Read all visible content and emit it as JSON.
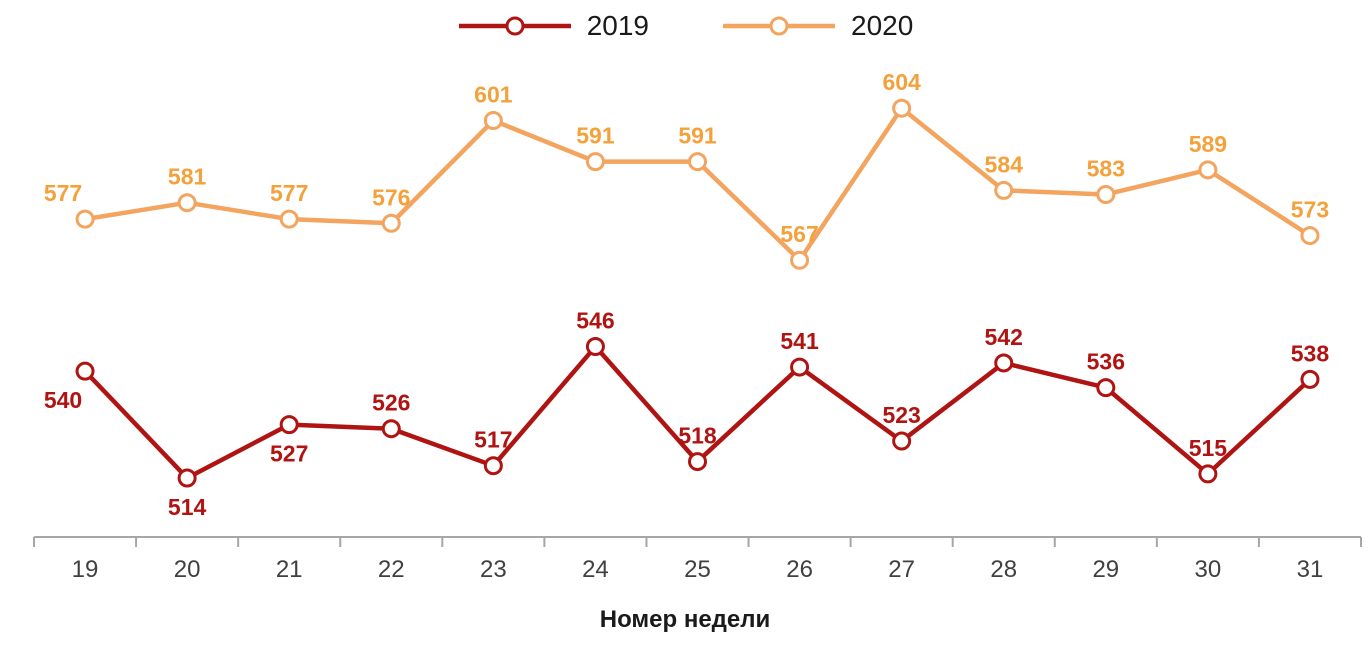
{
  "chart_data": {
    "type": "line",
    "categories": [
      "19",
      "20",
      "21",
      "22",
      "23",
      "24",
      "25",
      "26",
      "27",
      "28",
      "29",
      "30",
      "31"
    ],
    "xlabel": "Номер недели",
    "ylim": [
      505,
      615
    ],
    "grid": false,
    "legend_position": "top",
    "axis_color": "#a6a6a6",
    "tick_label_color": "#404040",
    "series": [
      {
        "name": "2019",
        "color": "#b01412",
        "label_color": "#b01412",
        "values": [
          540,
          514,
          527,
          526,
          517,
          546,
          518,
          541,
          523,
          542,
          536,
          515,
          538
        ],
        "label_positions": [
          "below",
          "below",
          "below",
          "above",
          "above",
          "above",
          "above",
          "above",
          "above",
          "above",
          "above",
          "above",
          "above"
        ]
      },
      {
        "name": "2020",
        "color": "#f3a45f",
        "label_color": "#f5a13b",
        "values": [
          577,
          581,
          577,
          576,
          601,
          591,
          591,
          567,
          604,
          584,
          583,
          589,
          573
        ],
        "label_positions": [
          "above",
          "above",
          "above",
          "above",
          "above",
          "above",
          "above",
          "above",
          "above",
          "above",
          "above",
          "above",
          "above"
        ]
      }
    ]
  }
}
